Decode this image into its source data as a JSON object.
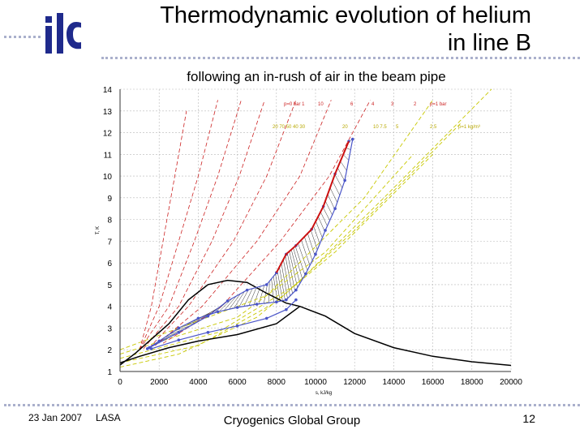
{
  "slide": {
    "title_line1": "Thermodynamic evolution of helium",
    "title_line2": "in line B",
    "subtitle": "following an in-rush of air in the beam pipe",
    "logo_text": "ilc"
  },
  "footer": {
    "date": "23 Jan 2007",
    "venue": "LASA",
    "group": "Cryogenics Global Group",
    "page": "12"
  },
  "chart_data": {
    "type": "line",
    "xlabel": "s, kJ/kg",
    "ylabel": "T, K",
    "xlim": [
      0,
      20000
    ],
    "ylim": [
      1,
      14
    ],
    "xticks": [
      "0",
      "2000",
      "4000",
      "6000",
      "8000",
      "10000",
      "12000",
      "14000",
      "16000",
      "18000",
      "20000"
    ],
    "yticks": [
      "1",
      "2",
      "3",
      "4",
      "5",
      "6",
      "7",
      "8",
      "9",
      "10",
      "11",
      "12",
      "13",
      "14"
    ],
    "grid": true,
    "isobar_labels": {
      "pressure_row": [
        "p=0 bar 1",
        "10",
        "6",
        "4",
        "3",
        "2",
        "p=1 bar"
      ],
      "density_row": [
        "20 70 50 40 30",
        "20",
        "10 7.5",
        "5",
        "2.5",
        "ρ=1 kg/m³"
      ]
    },
    "series": [
      {
        "role": "upper-path",
        "color": "#4a55c8",
        "points": [
          [
            1400,
            2.05
          ],
          [
            2000,
            2.4
          ],
          [
            3000,
            3.0
          ],
          [
            4000,
            3.45
          ],
          [
            5000,
            3.75
          ],
          [
            6000,
            3.95
          ],
          [
            7000,
            4.1
          ],
          [
            8000,
            4.2
          ],
          [
            8500,
            4.3
          ],
          [
            9000,
            4.75
          ],
          [
            9500,
            5.5
          ],
          [
            10000,
            6.4
          ],
          [
            10500,
            7.5
          ],
          [
            11000,
            8.5
          ],
          [
            11500,
            9.8
          ],
          [
            11900,
            11.7
          ]
        ]
      },
      {
        "role": "lower-path",
        "color": "#4a55c8",
        "points": [
          [
            1600,
            2.05
          ],
          [
            3000,
            2.45
          ],
          [
            4500,
            2.8
          ],
          [
            6000,
            3.1
          ],
          [
            7500,
            3.45
          ],
          [
            8500,
            3.85
          ],
          [
            9000,
            4.3
          ]
        ]
      },
      {
        "role": "mid-path",
        "color": "#4a55c8",
        "points": [
          [
            1500,
            2.1
          ],
          [
            3000,
            2.8
          ],
          [
            4500,
            3.55
          ],
          [
            5500,
            4.25
          ],
          [
            6500,
            4.75
          ],
          [
            7500,
            5.0
          ],
          [
            8000,
            5.55
          ],
          [
            8500,
            6.4
          ],
          [
            9000,
            6.8
          ],
          [
            9800,
            7.55
          ],
          [
            10400,
            8.6
          ],
          [
            11000,
            10.1
          ],
          [
            11700,
            11.6
          ]
        ]
      },
      {
        "role": "saturation-dome",
        "color": "#000000",
        "points": [
          [
            0,
            1.3
          ],
          [
            800,
            1.85
          ],
          [
            2500,
            3.2
          ],
          [
            3500,
            4.3
          ],
          [
            4500,
            5.0
          ],
          [
            5500,
            5.2
          ],
          [
            6500,
            5.1
          ],
          [
            7500,
            4.6
          ],
          [
            8500,
            4.15
          ],
          [
            9200,
            4.0
          ],
          [
            10500,
            3.55
          ],
          [
            12000,
            2.75
          ],
          [
            14000,
            2.1
          ],
          [
            16000,
            1.7
          ],
          [
            18000,
            1.45
          ],
          [
            20000,
            1.28
          ]
        ]
      },
      {
        "role": "inner-boundary",
        "color": "#000000",
        "points": [
          [
            0,
            1.4
          ],
          [
            1000,
            1.7
          ],
          [
            2500,
            2.1
          ],
          [
            4000,
            2.4
          ],
          [
            6000,
            2.7
          ],
          [
            8000,
            3.2
          ],
          [
            9200,
            4.0
          ]
        ]
      }
    ],
    "isobars": [
      {
        "p": "0.05",
        "color": "#cc2222",
        "points": [
          [
            1000,
            2.0
          ],
          [
            1600,
            4
          ],
          [
            2200,
            7
          ],
          [
            2800,
            10
          ],
          [
            3400,
            13
          ]
        ]
      },
      {
        "p": "0.1",
        "color": "#cc2222",
        "points": [
          [
            1000,
            2.0
          ],
          [
            2000,
            4
          ],
          [
            3000,
            7
          ],
          [
            4000,
            10
          ],
          [
            5000,
            13.5
          ]
        ]
      },
      {
        "p": "0.2",
        "color": "#cc2222",
        "points": [
          [
            1000,
            2.0
          ],
          [
            2500,
            4
          ],
          [
            3800,
            7
          ],
          [
            5000,
            10
          ],
          [
            6200,
            13.5
          ]
        ]
      },
      {
        "p": "0.4",
        "color": "#cc2222",
        "points": [
          [
            1200,
            2.05
          ],
          [
            3000,
            4
          ],
          [
            4700,
            7
          ],
          [
            6100,
            10
          ],
          [
            7400,
            13.5
          ]
        ]
      },
      {
        "p": "0.7",
        "color": "#cc2222",
        "points": [
          [
            1500,
            2.1
          ],
          [
            3500,
            4
          ],
          [
            5800,
            7
          ],
          [
            7500,
            10
          ],
          [
            9000,
            13.5
          ]
        ]
      },
      {
        "p": "1.5",
        "color": "#cc2222",
        "points": [
          [
            1800,
            2.2
          ],
          [
            4200,
            4
          ],
          [
            7000,
            7
          ],
          [
            9200,
            10
          ],
          [
            10800,
            13.5
          ]
        ]
      },
      {
        "p": "3",
        "color": "#cc2222",
        "points": [
          [
            2200,
            2.3
          ],
          [
            5200,
            4
          ],
          [
            8200,
            7
          ],
          [
            10700,
            10
          ],
          [
            12800,
            13.5
          ]
        ]
      }
    ],
    "isochores": [
      {
        "color": "#c8c800",
        "points": [
          [
            0,
            1.2
          ],
          [
            3000,
            1.8
          ],
          [
            7000,
            3.5
          ],
          [
            11000,
            6.5
          ],
          [
            16000,
            11
          ]
        ]
      },
      {
        "color": "#c8c800",
        "points": [
          [
            0,
            1.4
          ],
          [
            4000,
            2.2
          ],
          [
            8000,
            4.2
          ],
          [
            12000,
            7.5
          ],
          [
            17500,
            12.5
          ]
        ]
      },
      {
        "color": "#c8c800",
        "points": [
          [
            0,
            1.6
          ],
          [
            5000,
            2.8
          ],
          [
            9000,
            5.0
          ],
          [
            13500,
            9
          ],
          [
            19000,
            14
          ]
        ]
      },
      {
        "color": "#c8c800",
        "points": [
          [
            0,
            1.8
          ],
          [
            6000,
            3.5
          ],
          [
            10500,
            6.5
          ],
          [
            15000,
            11
          ]
        ]
      },
      {
        "color": "#c8c800",
        "points": [
          [
            0,
            2.0
          ],
          [
            7500,
            4.5
          ],
          [
            12500,
            9
          ],
          [
            16000,
            13.5
          ]
        ]
      }
    ]
  }
}
